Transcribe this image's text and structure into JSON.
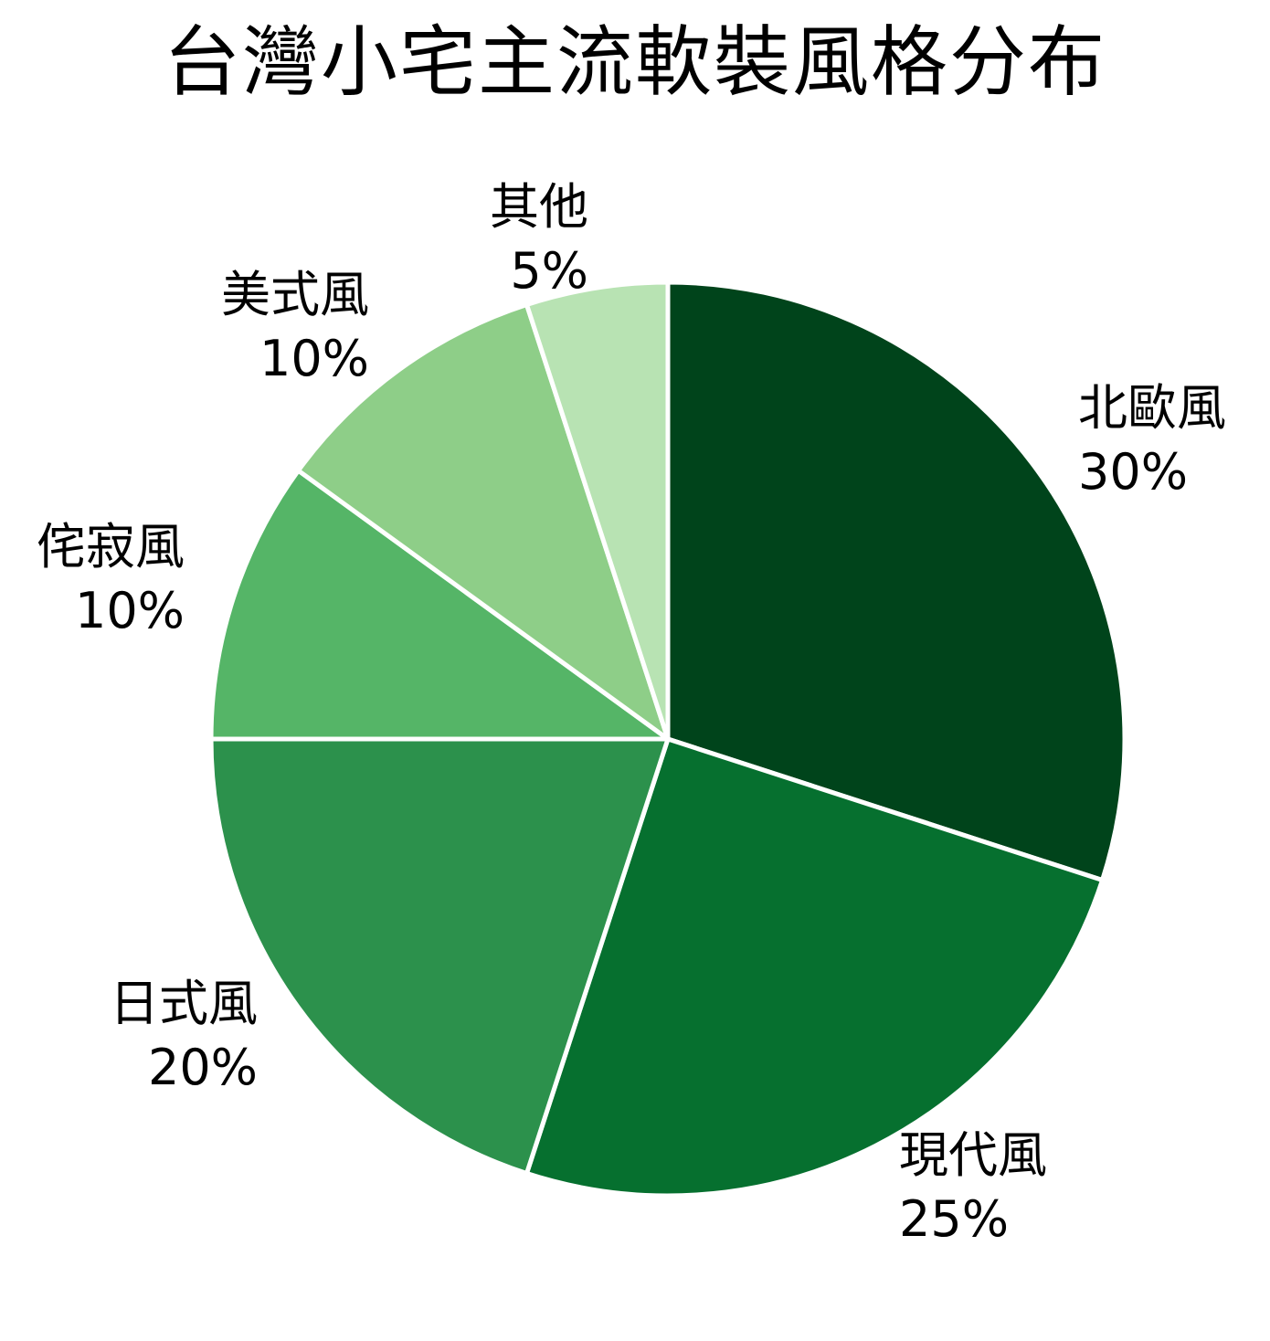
{
  "title": "台灣小宅主流軟裝風格分布",
  "chart_data": {
    "type": "pie",
    "title": "台灣小宅主流軟裝風格分布",
    "categories": [
      "北歐風",
      "現代風",
      "日式風",
      "侘寂風",
      "美式風",
      "其他"
    ],
    "values": [
      30,
      25,
      20,
      10,
      10,
      5
    ],
    "unit": "%",
    "colors": [
      "#00441b",
      "#06702f",
      "#2c914c",
      "#55b567",
      "#8ece88",
      "#b8e3b3"
    ],
    "start_angle": "12 o'clock",
    "direction": "clockwise",
    "legend": "none (labels outside slices)"
  },
  "labels": [
    {
      "name": "北歐風",
      "pct": "30%"
    },
    {
      "name": "現代風",
      "pct": "25%"
    },
    {
      "name": "日式風",
      "pct": "20%"
    },
    {
      "name": "侘寂風",
      "pct": "10%"
    },
    {
      "name": "美式風",
      "pct": "10%"
    },
    {
      "name": "其他",
      "pct": "5%"
    }
  ]
}
